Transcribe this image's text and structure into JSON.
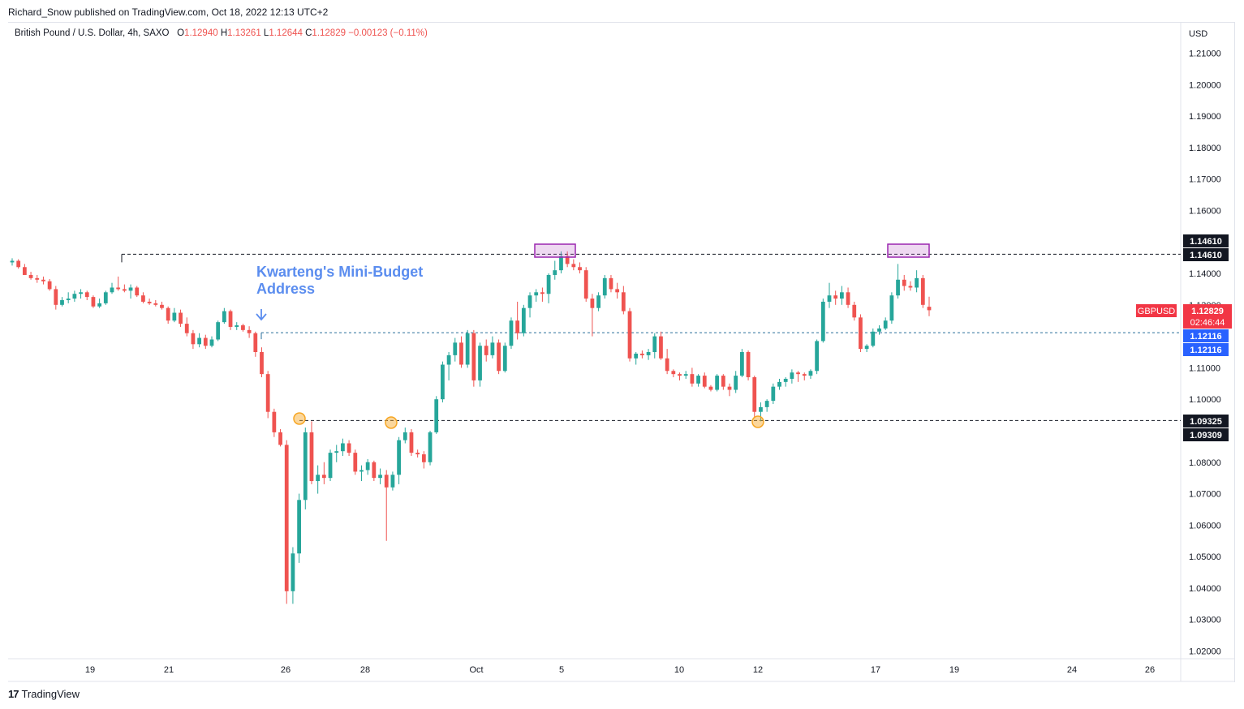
{
  "byline": "Richard_Snow published on TradingView.com, Oct 18, 2022 12:13 UTC+2",
  "legend": {
    "name": "British Pound / U.S. Dollar, 4h, SAXO",
    "open_label": "O",
    "open": "1.12940",
    "high_label": "H",
    "high": "1.13261",
    "low_label": "L",
    "low": "1.12644",
    "close_label": "C",
    "close": "1.12829",
    "change": "−0.00123 (−0.11%)"
  },
  "annotation": {
    "line1": "Kwarteng's Mini-Budget",
    "line2": "Address",
    "arrow_icon": "down-arrow-icon"
  },
  "axis": {
    "currency": "USD",
    "y_ticks": [
      "1.21000",
      "1.20000",
      "1.19000",
      "1.18000",
      "1.17000",
      "1.16000",
      "1.14000",
      "1.13000",
      "1.11000",
      "1.10000",
      "1.08000",
      "1.07000",
      "1.06000",
      "1.05000",
      "1.04000",
      "1.03000",
      "1.02000"
    ],
    "x_ticks": [
      "19",
      "21",
      "26",
      "28",
      "Oct",
      "5",
      "10",
      "12",
      "17",
      "19",
      "24",
      "26"
    ]
  },
  "price_tags": {
    "resistance_1": "1.14610",
    "resistance_2": "1.14610",
    "symbol": "GBPUSD",
    "last_price": "1.12829",
    "countdown": "02:46:44",
    "level_mid_1": "1.12116",
    "level_mid_2": "1.12116",
    "support_1": "1.09325",
    "support_2": "1.09309"
  },
  "colors": {
    "up": "#26a69a",
    "down": "#ef5350",
    "tag_dark": "#131722",
    "tag_blue": "#2962ff",
    "tag_red": "#f23645",
    "dashed_blue": "#2a6f9b",
    "circle": "#f6a623",
    "box": "#9c27b0"
  },
  "footer": {
    "brand": "TradingView",
    "logo_icon": "tradingview-logo-icon"
  },
  "chart_data": {
    "type": "candlestick",
    "title": "British Pound / U.S. Dollar, 4h, SAXO",
    "ylim": [
      1.02,
      1.21
    ],
    "levels": [
      1.1461,
      1.12116,
      1.09325,
      1.09309
    ],
    "last_close": 1.12829,
    "candles": [
      [
        1.1435,
        1.1448,
        1.1425,
        1.144
      ],
      [
        1.144,
        1.1445,
        1.1415,
        1.142
      ],
      [
        1.142,
        1.143,
        1.14,
        1.1395
      ],
      [
        1.1395,
        1.1405,
        1.138,
        1.1385
      ],
      [
        1.1385,
        1.1395,
        1.137,
        1.138
      ],
      [
        1.138,
        1.139,
        1.1365,
        1.1375
      ],
      [
        1.1375,
        1.1382,
        1.1345,
        1.135
      ],
      [
        1.135,
        1.136,
        1.1285,
        1.13
      ],
      [
        1.13,
        1.1325,
        1.1295,
        1.1315
      ],
      [
        1.1315,
        1.134,
        1.1305,
        1.132
      ],
      [
        1.132,
        1.1345,
        1.131,
        1.1335
      ],
      [
        1.1335,
        1.135,
        1.132,
        1.134
      ],
      [
        1.134,
        1.1345,
        1.1315,
        1.1325
      ],
      [
        1.1325,
        1.133,
        1.129,
        1.1295
      ],
      [
        1.1295,
        1.132,
        1.129,
        1.1305
      ],
      [
        1.1305,
        1.1345,
        1.13,
        1.134
      ],
      [
        1.134,
        1.137,
        1.1335,
        1.1355
      ],
      [
        1.1355,
        1.139,
        1.1345,
        1.135
      ],
      [
        1.135,
        1.1365,
        1.134,
        1.1345
      ],
      [
        1.1345,
        1.1365,
        1.132,
        1.1355
      ],
      [
        1.1355,
        1.136,
        1.1325,
        1.133
      ],
      [
        1.133,
        1.134,
        1.1305,
        1.131
      ],
      [
        1.131,
        1.132,
        1.13,
        1.1305
      ],
      [
        1.1305,
        1.1315,
        1.1295,
        1.13
      ],
      [
        1.13,
        1.131,
        1.1285,
        1.129
      ],
      [
        1.129,
        1.1295,
        1.124,
        1.125
      ],
      [
        1.125,
        1.129,
        1.1245,
        1.1275
      ],
      [
        1.1275,
        1.1285,
        1.123,
        1.124
      ],
      [
        1.124,
        1.126,
        1.12,
        1.121
      ],
      [
        1.121,
        1.122,
        1.116,
        1.1175
      ],
      [
        1.1175,
        1.121,
        1.1165,
        1.1195
      ],
      [
        1.1195,
        1.1205,
        1.116,
        1.117
      ],
      [
        1.117,
        1.12,
        1.1165,
        1.119
      ],
      [
        1.119,
        1.125,
        1.1185,
        1.1245
      ],
      [
        1.1245,
        1.129,
        1.124,
        1.128
      ],
      [
        1.128,
        1.1285,
        1.122,
        1.123
      ],
      [
        1.123,
        1.1245,
        1.122,
        1.1235
      ],
      [
        1.1235,
        1.124,
        1.1215,
        1.122
      ],
      [
        1.122,
        1.1232,
        1.1195,
        1.121
      ],
      [
        1.121,
        1.1215,
        1.1135,
        1.115
      ],
      [
        1.115,
        1.1165,
        1.107,
        1.108
      ],
      [
        1.108,
        1.109,
        1.094,
        1.096
      ],
      [
        1.096,
        1.097,
        1.088,
        1.0895
      ],
      [
        1.0895,
        1.0905,
        1.085,
        1.0855
      ],
      [
        1.0855,
        1.087,
        1.035,
        1.039
      ],
      [
        1.039,
        1.053,
        1.035,
        1.051
      ],
      [
        1.051,
        1.07,
        1.048,
        1.068
      ],
      [
        1.068,
        1.091,
        1.065,
        1.0895
      ],
      [
        1.0895,
        1.093,
        1.073,
        1.074
      ],
      [
        1.074,
        1.079,
        1.07,
        1.076
      ],
      [
        1.076,
        1.08,
        1.073,
        1.075
      ],
      [
        1.075,
        1.084,
        1.074,
        1.083
      ],
      [
        1.083,
        1.0855,
        1.08,
        1.0835
      ],
      [
        1.0835,
        1.0875,
        1.082,
        1.086
      ],
      [
        1.086,
        1.087,
        1.082,
        1.083
      ],
      [
        1.083,
        1.084,
        1.076,
        1.077
      ],
      [
        1.077,
        1.079,
        1.074,
        1.0775
      ],
      [
        1.0775,
        1.081,
        1.076,
        1.08
      ],
      [
        1.08,
        1.0805,
        1.074,
        1.075
      ],
      [
        1.075,
        1.078,
        1.073,
        1.076
      ],
      [
        1.076,
        1.0775,
        1.055,
        1.072
      ],
      [
        1.072,
        1.077,
        1.071,
        1.076
      ],
      [
        1.076,
        1.088,
        1.073,
        1.087
      ],
      [
        1.087,
        1.091,
        1.086,
        1.0895
      ],
      [
        1.0895,
        1.0905,
        1.082,
        1.083
      ],
      [
        1.083,
        1.084,
        1.0815,
        1.0825
      ],
      [
        1.0825,
        1.0835,
        1.078,
        1.08
      ],
      [
        1.08,
        1.09,
        1.079,
        1.0895
      ],
      [
        1.0895,
        1.101,
        1.089,
        1.1
      ],
      [
        1.1,
        1.112,
        1.099,
        1.111
      ],
      [
        1.111,
        1.115,
        1.106,
        1.114
      ],
      [
        1.114,
        1.1195,
        1.112,
        1.118
      ],
      [
        1.118,
        1.12,
        1.11,
        1.111
      ],
      [
        1.111,
        1.122,
        1.11,
        1.121
      ],
      [
        1.121,
        1.122,
        1.104,
        1.106
      ],
      [
        1.106,
        1.118,
        1.104,
        1.117
      ],
      [
        1.117,
        1.119,
        1.112,
        1.114
      ],
      [
        1.114,
        1.12,
        1.113,
        1.118
      ],
      [
        1.118,
        1.119,
        1.108,
        1.109
      ],
      [
        1.109,
        1.118,
        1.1085,
        1.117
      ],
      [
        1.117,
        1.126,
        1.116,
        1.125
      ],
      [
        1.125,
        1.131,
        1.119,
        1.121
      ],
      [
        1.121,
        1.13,
        1.12,
        1.129
      ],
      [
        1.129,
        1.134,
        1.126,
        1.133
      ],
      [
        1.133,
        1.135,
        1.131,
        1.134
      ],
      [
        1.134,
        1.1355,
        1.131,
        1.1335
      ],
      [
        1.1335,
        1.14,
        1.1305,
        1.1395
      ],
      [
        1.1395,
        1.144,
        1.138,
        1.141
      ],
      [
        1.141,
        1.147,
        1.14,
        1.1455
      ],
      [
        1.1455,
        1.147,
        1.142,
        1.143
      ],
      [
        1.143,
        1.1445,
        1.141,
        1.142
      ],
      [
        1.142,
        1.1435,
        1.14,
        1.141
      ],
      [
        1.141,
        1.142,
        1.131,
        1.132
      ],
      [
        1.132,
        1.1335,
        1.12,
        1.129
      ],
      [
        1.129,
        1.134,
        1.128,
        1.133
      ],
      [
        1.133,
        1.1395,
        1.132,
        1.1385
      ],
      [
        1.1385,
        1.1395,
        1.134,
        1.135
      ],
      [
        1.135,
        1.137,
        1.132,
        1.134
      ],
      [
        1.134,
        1.136,
        1.127,
        1.128
      ],
      [
        1.128,
        1.129,
        1.112,
        1.113
      ],
      [
        1.113,
        1.115,
        1.111,
        1.1145
      ],
      [
        1.1145,
        1.1155,
        1.113,
        1.114
      ],
      [
        1.114,
        1.116,
        1.1125,
        1.115
      ],
      [
        1.115,
        1.121,
        1.113,
        1.12
      ],
      [
        1.12,
        1.1215,
        1.1125,
        1.113
      ],
      [
        1.113,
        1.116,
        1.108,
        1.109
      ],
      [
        1.109,
        1.1095,
        1.107,
        1.108
      ],
      [
        1.108,
        1.1085,
        1.106,
        1.1075
      ],
      [
        1.1075,
        1.109,
        1.1065,
        1.108
      ],
      [
        1.108,
        1.11,
        1.104,
        1.105
      ],
      [
        1.105,
        1.108,
        1.104,
        1.1075
      ],
      [
        1.1075,
        1.1085,
        1.1035,
        1.104
      ],
      [
        1.104,
        1.1045,
        1.1025,
        1.103
      ],
      [
        1.103,
        1.108,
        1.1025,
        1.1075
      ],
      [
        1.1075,
        1.108,
        1.103,
        1.104
      ],
      [
        1.104,
        1.105,
        1.101,
        1.103
      ],
      [
        1.103,
        1.109,
        1.102,
        1.1075
      ],
      [
        1.1075,
        1.116,
        1.107,
        1.115
      ],
      [
        1.115,
        1.1155,
        1.106,
        1.107
      ],
      [
        1.107,
        1.1075,
        1.094,
        1.096
      ],
      [
        1.096,
        1.099,
        1.093,
        1.0975
      ],
      [
        1.0975,
        1.1,
        1.096,
        1.0995
      ],
      [
        1.0995,
        1.105,
        1.0985,
        1.104
      ],
      [
        1.104,
        1.1065,
        1.103,
        1.1055
      ],
      [
        1.1055,
        1.107,
        1.104,
        1.1065
      ],
      [
        1.1065,
        1.1095,
        1.105,
        1.1085
      ],
      [
        1.1085,
        1.109,
        1.1055,
        1.108
      ],
      [
        1.108,
        1.1085,
        1.106,
        1.1075
      ],
      [
        1.1075,
        1.1095,
        1.1065,
        1.109
      ],
      [
        1.109,
        1.119,
        1.108,
        1.1185
      ],
      [
        1.1185,
        1.132,
        1.118,
        1.131
      ],
      [
        1.131,
        1.137,
        1.129,
        1.133
      ],
      [
        1.133,
        1.1345,
        1.13,
        1.132
      ],
      [
        1.132,
        1.136,
        1.13,
        1.134
      ],
      [
        1.134,
        1.1355,
        1.129,
        1.13
      ],
      [
        1.13,
        1.131,
        1.125,
        1.126
      ],
      [
        1.126,
        1.127,
        1.115,
        1.116
      ],
      [
        1.116,
        1.1175,
        1.115,
        1.117
      ],
      [
        1.117,
        1.1225,
        1.1165,
        1.1215
      ],
      [
        1.1215,
        1.1235,
        1.1205,
        1.1225
      ],
      [
        1.1225,
        1.126,
        1.122,
        1.125
      ],
      [
        1.125,
        1.134,
        1.124,
        1.133
      ],
      [
        1.133,
        1.143,
        1.132,
        1.138
      ],
      [
        1.138,
        1.1395,
        1.1345,
        1.136
      ],
      [
        1.136,
        1.1375,
        1.1345,
        1.1355
      ],
      [
        1.1355,
        1.141,
        1.134,
        1.1385
      ],
      [
        1.1385,
        1.1395,
        1.129,
        1.13
      ],
      [
        1.1294,
        1.1326,
        1.1264,
        1.1283
      ]
    ]
  }
}
